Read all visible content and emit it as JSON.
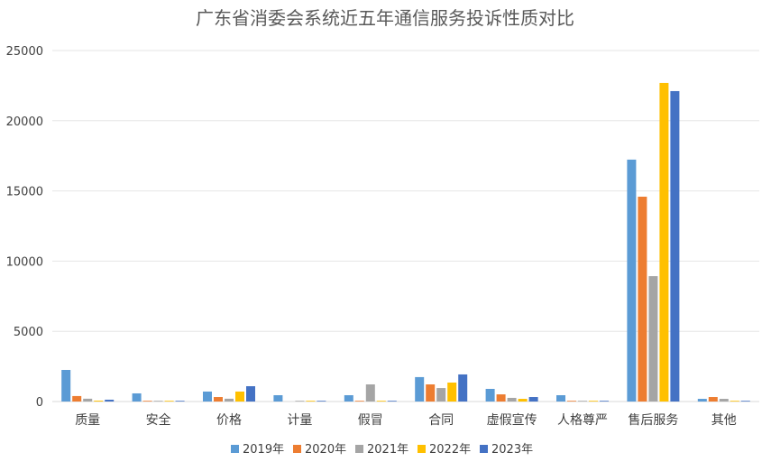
{
  "chart_data": {
    "type": "bar",
    "title": "广东省消委会系统近五年通信服务投诉性质对比",
    "xlabel": "",
    "ylabel": "",
    "ylim": [
      0,
      25000
    ],
    "yticks": [
      "0",
      "5000",
      "10000",
      "15000",
      "20000",
      "25000"
    ],
    "grid": true,
    "legend": "bottom",
    "categories": [
      "质量",
      "安全",
      "价格",
      "计量",
      "假冒",
      "合同",
      "虚假宣传",
      "人格尊严",
      "售后服务",
      "其他"
    ],
    "series": [
      {
        "name": "2019年",
        "color": "#5B9BD5",
        "values": [
          2250,
          580,
          710,
          450,
          450,
          1740,
          900,
          450,
          17230,
          190
        ]
      },
      {
        "name": "2020年",
        "color": "#ED7D31",
        "values": [
          390,
          50,
          320,
          0,
          50,
          1220,
          510,
          50,
          14590,
          320
        ]
      },
      {
        "name": "2021年",
        "color": "#A5A5A5",
        "values": [
          200,
          50,
          200,
          50,
          1220,
          960,
          260,
          50,
          8930,
          190
        ]
      },
      {
        "name": "2022年",
        "color": "#FFC000",
        "values": [
          60,
          50,
          710,
          50,
          50,
          1350,
          190,
          50,
          22690,
          50
        ]
      },
      {
        "name": "2023年",
        "color": "#4472C4",
        "values": [
          130,
          50,
          1090,
          50,
          50,
          1930,
          320,
          50,
          22110,
          50
        ]
      }
    ]
  }
}
